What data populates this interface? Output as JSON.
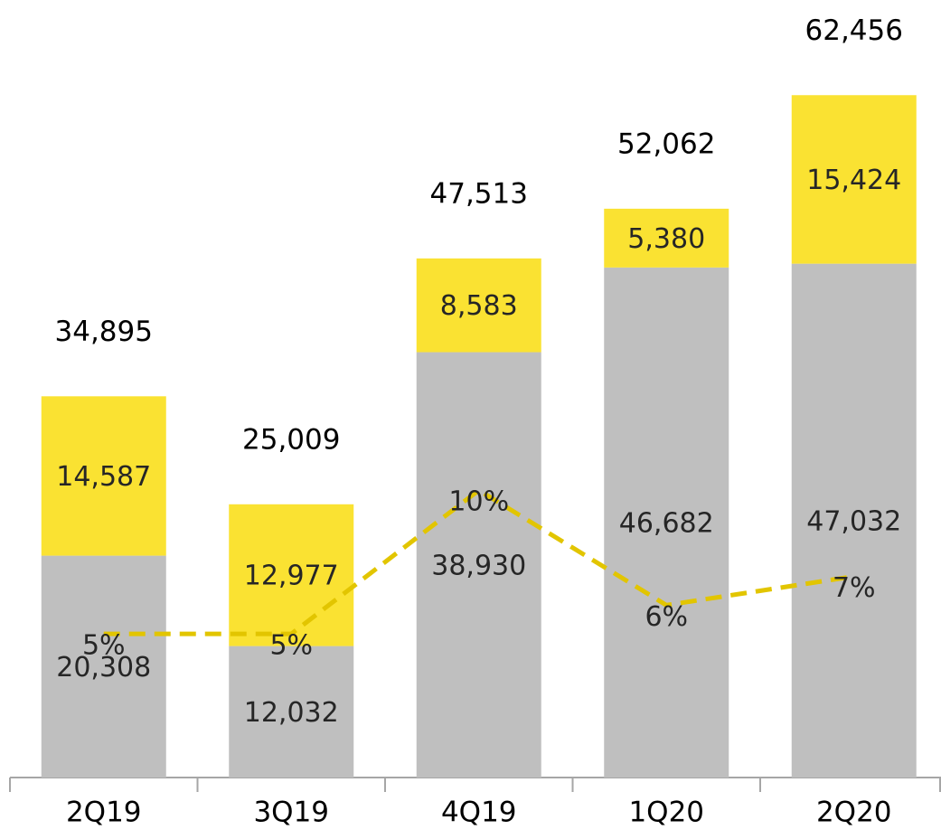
{
  "chart_data": {
    "type": "bar",
    "categories": [
      "2Q19",
      "3Q19",
      "4Q19",
      "1Q20",
      "2Q20"
    ],
    "series": [
      {
        "color": "#bfbfbf",
        "values": [
          20308,
          12032,
          38930,
          46682,
          47032
        ],
        "value_labels": [
          "20,308",
          "12,032",
          "38,930",
          "46,682",
          "47,032"
        ]
      },
      {
        "color": "#fae232",
        "values": [
          14587,
          12977,
          8583,
          5380,
          15424
        ],
        "value_labels": [
          "14,587",
          "12,977",
          "8,583",
          "5,380",
          "15,424"
        ]
      },
      {
        "type": "line",
        "axis": "y2",
        "color": "#e2c500",
        "dashed": true,
        "values": [
          5,
          5,
          10,
          6,
          7
        ],
        "value_labels": [
          "5%",
          "5%",
          "10%",
          "6%",
          "7%"
        ]
      }
    ],
    "totals": [
      34895,
      25009,
      47513,
      52062,
      62456
    ],
    "total_labels": [
      "34,895",
      "25,009",
      "47,513",
      "52,062",
      "62,456"
    ],
    "stacked": true,
    "ylim": [
      0,
      71000
    ],
    "y2lim": [
      0,
      27
    ]
  }
}
